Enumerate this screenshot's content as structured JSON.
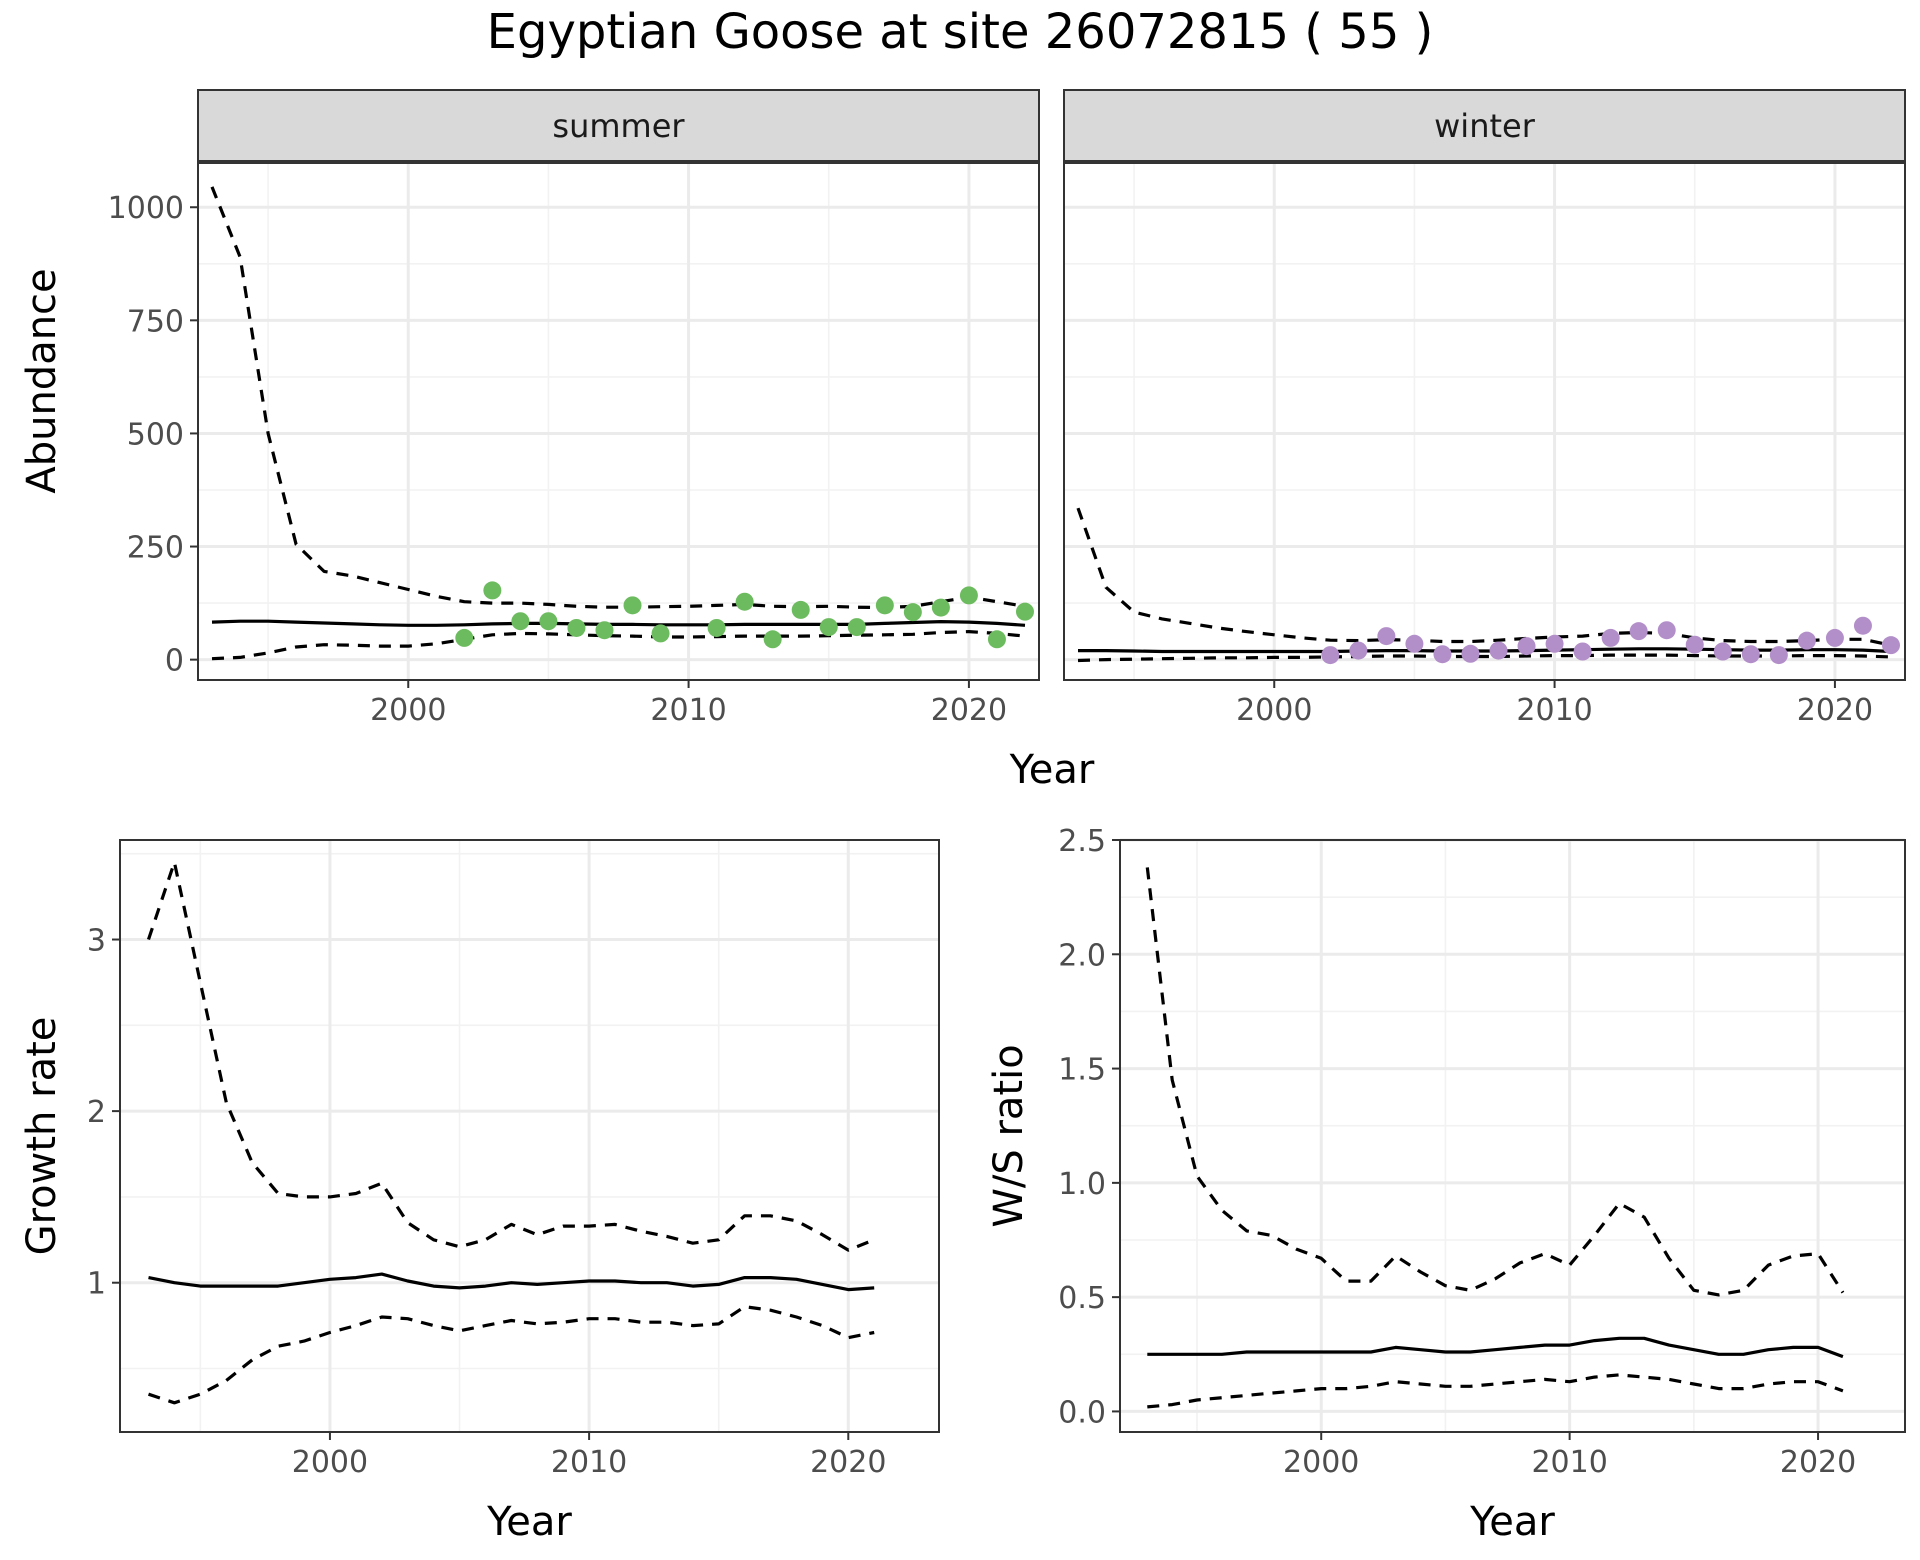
{
  "figure": {
    "title": "Egyptian Goose at site 26072815 ( 55 )"
  },
  "chart_data": [
    {
      "type": "line",
      "panel": "summer",
      "strip": "summer",
      "xlabel": "Year",
      "ylabel": "Abundance",
      "xlim": [
        1992.5,
        2022.5
      ],
      "ylim": [
        -45,
        1100
      ],
      "x_ticks": [
        2000,
        2010,
        2020
      ],
      "y_ticks": [
        0,
        250,
        500,
        750,
        1000
      ],
      "point_color": "#6dbb5f",
      "series": [
        {
          "name": "estimate",
          "style": "solid",
          "x": [
            1993,
            1994,
            1995,
            1996,
            1997,
            1998,
            1999,
            2000,
            2001,
            2002,
            2003,
            2004,
            2005,
            2006,
            2007,
            2008,
            2009,
            2010,
            2011,
            2012,
            2013,
            2014,
            2015,
            2016,
            2017,
            2018,
            2019,
            2020,
            2021,
            2022
          ],
          "y": [
            83,
            85,
            85,
            83,
            81,
            79,
            77,
            76,
            76,
            77,
            79,
            80,
            80,
            79,
            78,
            78,
            77,
            77,
            77,
            78,
            78,
            78,
            78,
            78,
            80,
            82,
            84,
            83,
            80,
            76
          ]
        },
        {
          "name": "upper",
          "style": "dashed",
          "x": [
            1993,
            1994,
            1995,
            1996,
            1997,
            1998,
            1999,
            2000,
            2001,
            2002,
            2003,
            2004,
            2005,
            2006,
            2007,
            2008,
            2009,
            2010,
            2011,
            2012,
            2013,
            2014,
            2015,
            2016,
            2017,
            2018,
            2019,
            2020,
            2021,
            2022
          ],
          "y": [
            1045,
            890,
            500,
            255,
            195,
            185,
            170,
            155,
            140,
            128,
            125,
            125,
            122,
            118,
            116,
            116,
            117,
            118,
            120,
            122,
            118,
            117,
            118,
            116,
            115,
            118,
            128,
            138,
            128,
            118
          ]
        },
        {
          "name": "lower",
          "style": "dashed",
          "x": [
            1993,
            1994,
            1995,
            1996,
            1997,
            1998,
            1999,
            2000,
            2001,
            2002,
            2003,
            2004,
            2005,
            2006,
            2007,
            2008,
            2009,
            2010,
            2011,
            2012,
            2013,
            2014,
            2015,
            2016,
            2017,
            2018,
            2019,
            2020,
            2021,
            2022
          ],
          "y": [
            2,
            5,
            15,
            28,
            33,
            32,
            30,
            30,
            35,
            45,
            55,
            58,
            57,
            55,
            53,
            52,
            50,
            50,
            51,
            52,
            52,
            52,
            53,
            54,
            55,
            56,
            60,
            62,
            58,
            52
          ]
        }
      ],
      "points": {
        "x": [
          2002,
          2003,
          2004,
          2005,
          2006,
          2007,
          2008,
          2009,
          2011,
          2012,
          2013,
          2014,
          2015,
          2016,
          2017,
          2018,
          2019,
          2020,
          2021,
          2022
        ],
        "y": [
          48,
          153,
          85,
          85,
          70,
          65,
          120,
          58,
          70,
          128,
          45,
          110,
          72,
          72,
          120,
          105,
          115,
          142,
          45,
          106
        ]
      }
    },
    {
      "type": "line",
      "panel": "winter",
      "strip": "winter",
      "xlabel": "Year",
      "ylabel": "Abundance",
      "xlim": [
        1992.5,
        2022.5
      ],
      "ylim": [
        -45,
        1100
      ],
      "x_ticks": [
        2000,
        2010,
        2020
      ],
      "y_ticks": [
        0,
        250,
        500,
        750,
        1000
      ],
      "point_color": "#b38fc9",
      "series": [
        {
          "name": "estimate",
          "style": "solid",
          "x": [
            1993,
            1994,
            1995,
            1996,
            1997,
            1998,
            1999,
            2000,
            2001,
            2002,
            2003,
            2004,
            2005,
            2006,
            2007,
            2008,
            2009,
            2010,
            2011,
            2012,
            2013,
            2014,
            2015,
            2016,
            2017,
            2018,
            2019,
            2020,
            2021,
            2022
          ],
          "y": [
            20,
            20,
            19,
            18,
            18,
            18,
            18,
            18,
            18,
            18,
            19,
            20,
            20,
            19,
            19,
            19,
            20,
            21,
            22,
            23,
            24,
            24,
            23,
            22,
            21,
            21,
            22,
            22,
            21,
            18
          ]
        },
        {
          "name": "upper",
          "style": "dashed",
          "x": [
            1993,
            1994,
            1995,
            1996,
            1997,
            1998,
            1999,
            2000,
            2001,
            2002,
            2003,
            2004,
            2005,
            2006,
            2007,
            2008,
            2009,
            2010,
            2011,
            2012,
            2013,
            2014,
            2015,
            2016,
            2017,
            2018,
            2019,
            2020,
            2021,
            2022
          ],
          "y": [
            335,
            160,
            105,
            90,
            80,
            70,
            62,
            55,
            48,
            43,
            42,
            44,
            43,
            40,
            40,
            43,
            47,
            50,
            52,
            58,
            60,
            58,
            48,
            42,
            40,
            40,
            42,
            45,
            45,
            32
          ]
        },
        {
          "name": "lower",
          "style": "dashed",
          "x": [
            1993,
            1994,
            1995,
            1996,
            1997,
            1998,
            1999,
            2000,
            2001,
            2002,
            2003,
            2004,
            2005,
            2006,
            2007,
            2008,
            2009,
            2010,
            2011,
            2012,
            2013,
            2014,
            2015,
            2016,
            2017,
            2018,
            2019,
            2020,
            2021,
            2022
          ],
          "y": [
            -2,
            0,
            1,
            2,
            3,
            4,
            4,
            5,
            5,
            6,
            7,
            8,
            8,
            7,
            7,
            7,
            8,
            9,
            9,
            10,
            10,
            10,
            9,
            8,
            8,
            8,
            9,
            9,
            8,
            6
          ]
        }
      ],
      "points": {
        "x": [
          2002,
          2003,
          2004,
          2005,
          2006,
          2007,
          2008,
          2009,
          2010,
          2011,
          2012,
          2013,
          2014,
          2015,
          2016,
          2017,
          2018,
          2019,
          2020,
          2021,
          2022
        ],
        "y": [
          10,
          20,
          52,
          35,
          12,
          13,
          20,
          30,
          35,
          18,
          48,
          63,
          65,
          33,
          18,
          12,
          10,
          42,
          48,
          75,
          32
        ]
      }
    },
    {
      "type": "line",
      "panel": "growth",
      "xlabel": "Year",
      "ylabel": "Growth rate",
      "xlim": [
        1991.9,
        2023.5
      ],
      "ylim": [
        0.13,
        3.58
      ],
      "x_ticks": [
        2000,
        2010,
        2020
      ],
      "y_ticks": [
        1,
        2,
        3
      ],
      "series": [
        {
          "name": "estimate",
          "style": "solid",
          "x": [
            1993,
            1994,
            1995,
            1996,
            1997,
            1998,
            1999,
            2000,
            2001,
            2002,
            2003,
            2004,
            2005,
            2006,
            2007,
            2008,
            2009,
            2010,
            2011,
            2012,
            2013,
            2014,
            2015,
            2016,
            2017,
            2018,
            2019,
            2020,
            2021
          ],
          "y": [
            1.03,
            1.0,
            0.98,
            0.98,
            0.98,
            0.98,
            1.0,
            1.02,
            1.03,
            1.05,
            1.01,
            0.98,
            0.97,
            0.98,
            1.0,
            0.99,
            1.0,
            1.01,
            1.01,
            1.0,
            1.0,
            0.98,
            0.99,
            1.03,
            1.03,
            1.02,
            0.99,
            0.96,
            0.97
          ]
        },
        {
          "name": "upper",
          "style": "dashed",
          "x": [
            1993,
            1994,
            1995,
            1996,
            1997,
            1998,
            1999,
            2000,
            2001,
            2002,
            2003,
            2004,
            2005,
            2006,
            2007,
            2008,
            2009,
            2010,
            2011,
            2012,
            2013,
            2014,
            2015,
            2016,
            2017,
            2018,
            2019,
            2020,
            2021
          ],
          "y": [
            3.0,
            3.45,
            2.75,
            2.05,
            1.7,
            1.52,
            1.5,
            1.5,
            1.52,
            1.58,
            1.35,
            1.25,
            1.21,
            1.25,
            1.34,
            1.28,
            1.33,
            1.33,
            1.34,
            1.3,
            1.27,
            1.23,
            1.25,
            1.39,
            1.39,
            1.36,
            1.28,
            1.19,
            1.25
          ]
        },
        {
          "name": "lower",
          "style": "dashed",
          "x": [
            1993,
            1994,
            1995,
            1996,
            1997,
            1998,
            1999,
            2000,
            2001,
            2002,
            2003,
            2004,
            2005,
            2006,
            2007,
            2008,
            2009,
            2010,
            2011,
            2012,
            2013,
            2014,
            2015,
            2016,
            2017,
            2018,
            2019,
            2020,
            2021
          ],
          "y": [
            0.35,
            0.3,
            0.35,
            0.43,
            0.55,
            0.63,
            0.66,
            0.71,
            0.75,
            0.8,
            0.79,
            0.75,
            0.72,
            0.75,
            0.78,
            0.76,
            0.77,
            0.79,
            0.79,
            0.77,
            0.77,
            0.75,
            0.76,
            0.86,
            0.84,
            0.8,
            0.75,
            0.68,
            0.71
          ]
        }
      ]
    },
    {
      "type": "line",
      "panel": "ratio",
      "xlabel": "Year",
      "ylabel": "W/S ratio",
      "xlim": [
        1991.9,
        2023.5
      ],
      "ylim": [
        -0.09,
        2.5
      ],
      "x_ticks": [
        2000,
        2010,
        2020
      ],
      "y_ticks": [
        0.0,
        0.5,
        1.0,
        1.5,
        2.0,
        2.5
      ],
      "y_tick_labels": [
        "0.0",
        "0.5",
        "1.0",
        "1.5",
        "2.0",
        "2.5"
      ],
      "series": [
        {
          "name": "estimate",
          "style": "solid",
          "x": [
            1993,
            1994,
            1995,
            1996,
            1997,
            1998,
            1999,
            2000,
            2001,
            2002,
            2003,
            2004,
            2005,
            2006,
            2007,
            2008,
            2009,
            2010,
            2011,
            2012,
            2013,
            2014,
            2015,
            2016,
            2017,
            2018,
            2019,
            2020,
            2021
          ],
          "y": [
            0.25,
            0.25,
            0.25,
            0.25,
            0.26,
            0.26,
            0.26,
            0.26,
            0.26,
            0.26,
            0.28,
            0.27,
            0.26,
            0.26,
            0.27,
            0.28,
            0.29,
            0.29,
            0.31,
            0.32,
            0.32,
            0.29,
            0.27,
            0.25,
            0.25,
            0.27,
            0.28,
            0.28,
            0.24
          ]
        },
        {
          "name": "upper",
          "style": "dashed",
          "x": [
            1993,
            1994,
            1995,
            1996,
            1997,
            1998,
            1999,
            2000,
            2001,
            2002,
            2003,
            2004,
            2005,
            2006,
            2007,
            2008,
            2009,
            2010,
            2011,
            2012,
            2013,
            2014,
            2015,
            2016,
            2017,
            2018,
            2019,
            2020,
            2021
          ],
          "y": [
            2.38,
            1.45,
            1.03,
            0.88,
            0.79,
            0.77,
            0.71,
            0.67,
            0.57,
            0.57,
            0.68,
            0.61,
            0.55,
            0.53,
            0.58,
            0.65,
            0.69,
            0.64,
            0.77,
            0.91,
            0.85,
            0.67,
            0.53,
            0.51,
            0.53,
            0.64,
            0.68,
            0.69,
            0.52
          ]
        },
        {
          "name": "lower",
          "style": "dashed",
          "x": [
            1993,
            1994,
            1995,
            1996,
            1997,
            1998,
            1999,
            2000,
            2001,
            2002,
            2003,
            2004,
            2005,
            2006,
            2007,
            2008,
            2009,
            2010,
            2011,
            2012,
            2013,
            2014,
            2015,
            2016,
            2017,
            2018,
            2019,
            2020,
            2021
          ],
          "y": [
            0.02,
            0.03,
            0.05,
            0.06,
            0.07,
            0.08,
            0.09,
            0.1,
            0.1,
            0.11,
            0.13,
            0.12,
            0.11,
            0.11,
            0.12,
            0.13,
            0.14,
            0.13,
            0.15,
            0.16,
            0.15,
            0.14,
            0.12,
            0.1,
            0.1,
            0.12,
            0.13,
            0.13,
            0.09
          ]
        }
      ]
    }
  ]
}
